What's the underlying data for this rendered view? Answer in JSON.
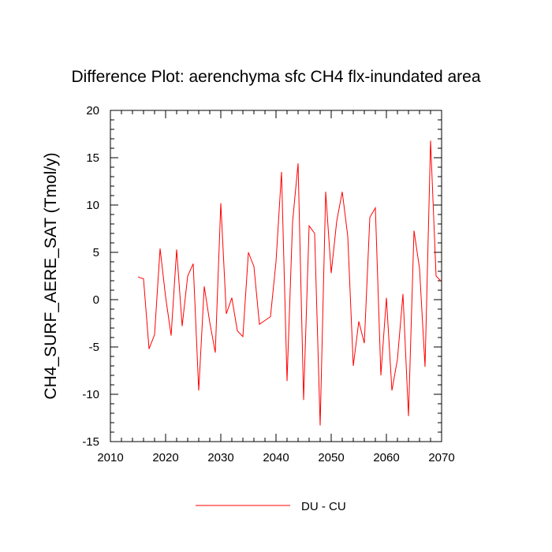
{
  "chart_data": {
    "type": "line",
    "title": "Difference Plot: aerenchyma sfc CH4 flx-inundated area",
    "xlabel": "",
    "ylabel": "CH4_SURF_AERE_SAT  (Tmol/y)",
    "xlim": [
      2010,
      2070
    ],
    "ylim": [
      -15,
      20
    ],
    "xticks": [
      2010,
      2020,
      2030,
      2040,
      2050,
      2060,
      2070
    ],
    "yticks": [
      -15,
      -10,
      -5,
      0,
      5,
      10,
      15,
      20
    ],
    "grid": false,
    "legend_position": "bottom-center",
    "series": [
      {
        "name": "DU - CU",
        "color": "#ff0000",
        "x": [
          2015,
          2016,
          2017,
          2018,
          2019,
          2020,
          2021,
          2022,
          2023,
          2024,
          2025,
          2026,
          2027,
          2028,
          2029,
          2030,
          2031,
          2032,
          2033,
          2034,
          2035,
          2036,
          2037,
          2038,
          2039,
          2040,
          2041,
          2042,
          2043,
          2044,
          2045,
          2046,
          2047,
          2048,
          2049,
          2050,
          2051,
          2052,
          2053,
          2054,
          2055,
          2056,
          2057,
          2058,
          2059,
          2060,
          2061,
          2062,
          2063,
          2064,
          2065,
          2066,
          2067,
          2068,
          2069,
          2070
        ],
        "y": [
          2.4,
          2.2,
          -5.2,
          -3.7,
          5.4,
          0.3,
          -3.8,
          5.3,
          -2.8,
          2.5,
          3.8,
          -9.6,
          1.4,
          -2.4,
          -5.6,
          10.2,
          -1.5,
          0.2,
          -3.3,
          -3.9,
          5.0,
          3.5,
          -2.6,
          -2.2,
          -1.8,
          4.0,
          13.5,
          -8.6,
          8.2,
          14.4,
          -10.6,
          7.8,
          7.0,
          -13.3,
          11.4,
          2.8,
          8.3,
          11.4,
          6.7,
          -7.0,
          -2.3,
          -4.6,
          8.7,
          9.7,
          -8.0,
          0.2,
          -9.6,
          -6.3,
          0.6,
          -12.3,
          7.3,
          3.3,
          -7.1,
          16.8,
          2.5,
          1.9
        ]
      }
    ]
  }
}
